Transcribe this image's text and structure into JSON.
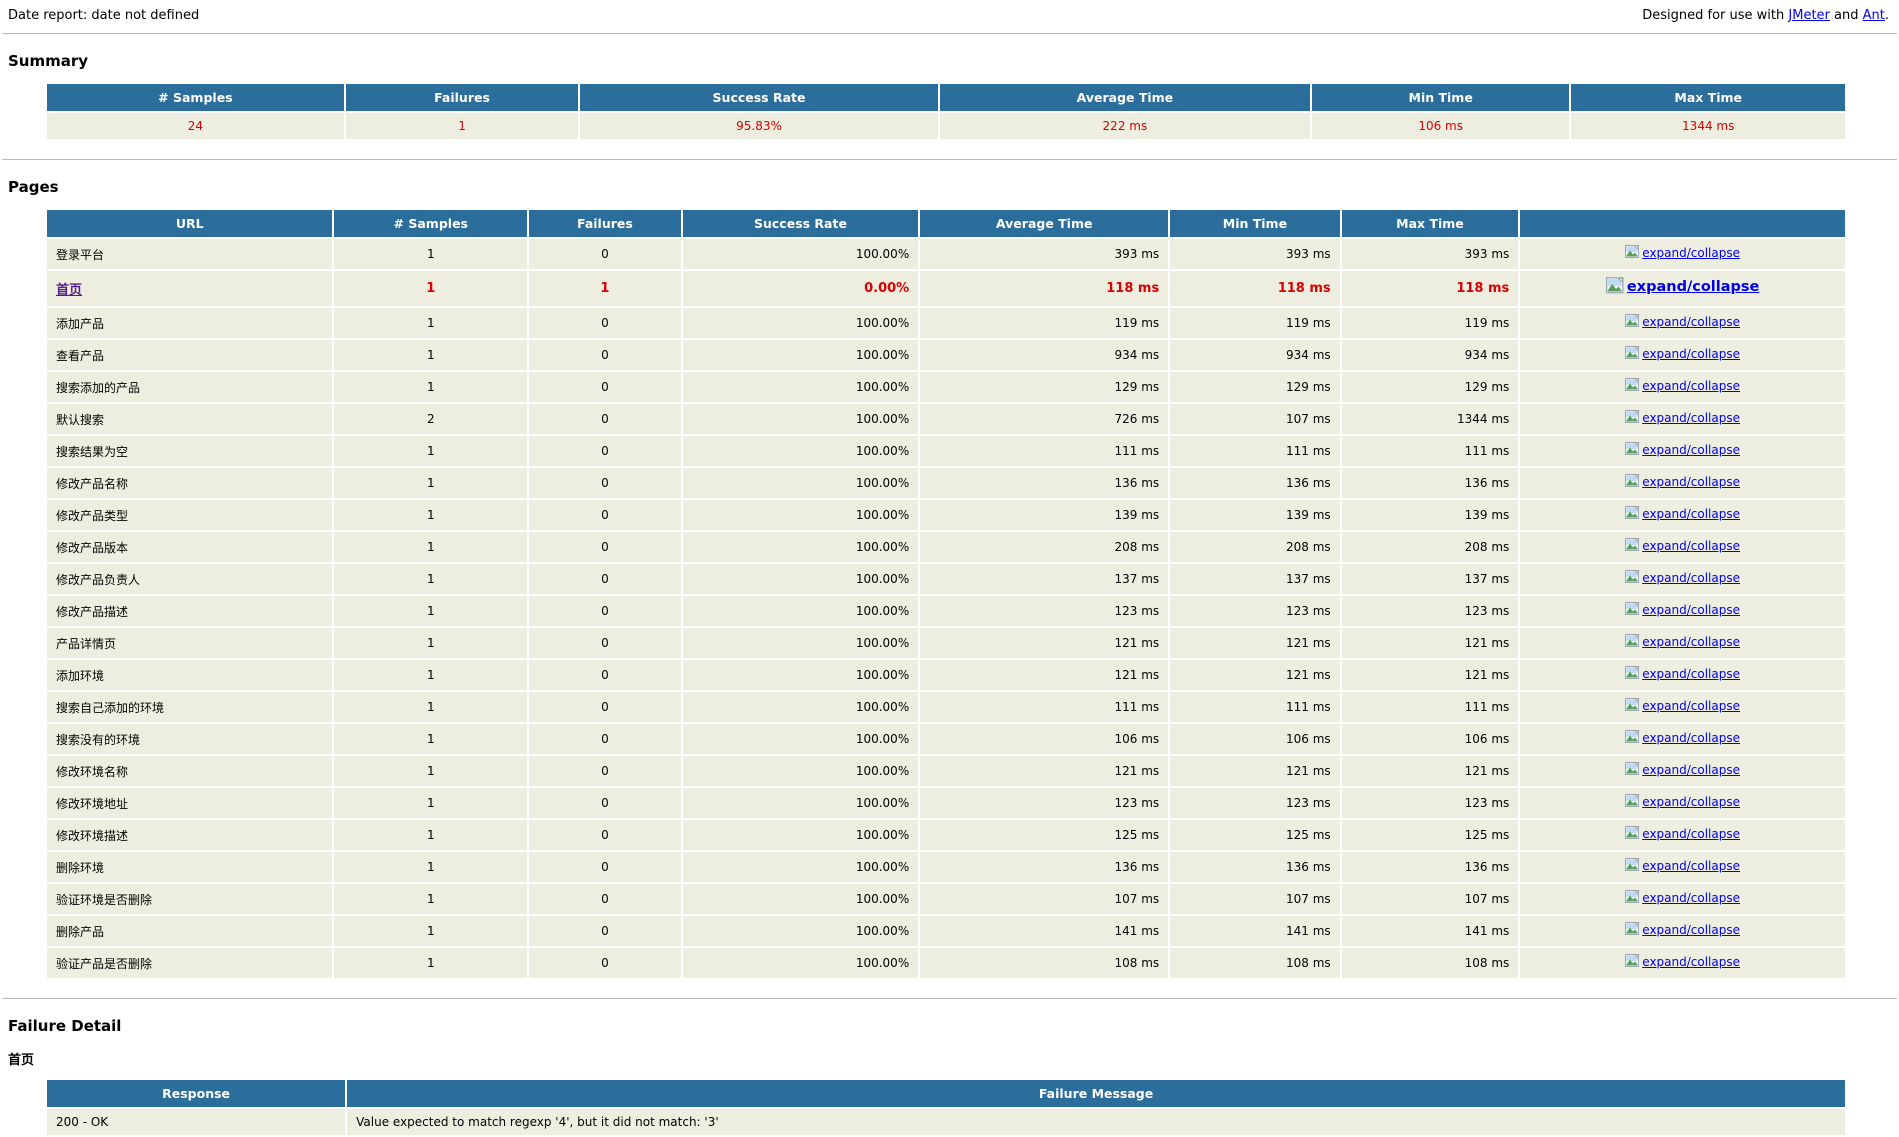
{
  "header": {
    "date_report": "Date report: date not defined",
    "designed_prefix": "Designed for use with ",
    "jmeter_link": "JMeter",
    "and_text": " and ",
    "ant_link": "Ant",
    "period": "."
  },
  "colors": {
    "header_bg": "#2c6e9b",
    "row_bg": "#eeeee0",
    "failure": "#dd0000",
    "link": "#0000ee",
    "visited": "#551a8b"
  },
  "summary": {
    "title": "Summary",
    "columns": [
      "# Samples",
      "Failures",
      "Success Rate",
      "Average Time",
      "Min Time",
      "Max Time"
    ],
    "values": [
      "24",
      "1",
      "95.83%",
      "222 ms",
      "106 ms",
      "1344 ms"
    ]
  },
  "pages": {
    "title": "Pages",
    "columns": [
      "URL",
      "# Samples",
      "Failures",
      "Success Rate",
      "Average Time",
      "Min Time",
      "Max Time",
      ""
    ],
    "expand_label": "expand/collapse",
    "rows": [
      {
        "url": "登录平台",
        "samples": "1",
        "failures": "0",
        "success_rate": "100.00%",
        "avg": "393 ms",
        "min": "393 ms",
        "max": "393 ms",
        "failed": false
      },
      {
        "url": "首页",
        "samples": "1",
        "failures": "1",
        "success_rate": "0.00%",
        "avg": "118 ms",
        "min": "118 ms",
        "max": "118 ms",
        "failed": true
      },
      {
        "url": "添加产品",
        "samples": "1",
        "failures": "0",
        "success_rate": "100.00%",
        "avg": "119 ms",
        "min": "119 ms",
        "max": "119 ms",
        "failed": false
      },
      {
        "url": "查看产品",
        "samples": "1",
        "failures": "0",
        "success_rate": "100.00%",
        "avg": "934 ms",
        "min": "934 ms",
        "max": "934 ms",
        "failed": false
      },
      {
        "url": "搜索添加的产品",
        "samples": "1",
        "failures": "0",
        "success_rate": "100.00%",
        "avg": "129 ms",
        "min": "129 ms",
        "max": "129 ms",
        "failed": false
      },
      {
        "url": "默认搜索",
        "samples": "2",
        "failures": "0",
        "success_rate": "100.00%",
        "avg": "726 ms",
        "min": "107 ms",
        "max": "1344 ms",
        "failed": false
      },
      {
        "url": "搜索结果为空",
        "samples": "1",
        "failures": "0",
        "success_rate": "100.00%",
        "avg": "111 ms",
        "min": "111 ms",
        "max": "111 ms",
        "failed": false
      },
      {
        "url": "修改产品名称",
        "samples": "1",
        "failures": "0",
        "success_rate": "100.00%",
        "avg": "136 ms",
        "min": "136 ms",
        "max": "136 ms",
        "failed": false
      },
      {
        "url": "修改产品类型",
        "samples": "1",
        "failures": "0",
        "success_rate": "100.00%",
        "avg": "139 ms",
        "min": "139 ms",
        "max": "139 ms",
        "failed": false
      },
      {
        "url": "修改产品版本",
        "samples": "1",
        "failures": "0",
        "success_rate": "100.00%",
        "avg": "208 ms",
        "min": "208 ms",
        "max": "208 ms",
        "failed": false
      },
      {
        "url": "修改产品负责人",
        "samples": "1",
        "failures": "0",
        "success_rate": "100.00%",
        "avg": "137 ms",
        "min": "137 ms",
        "max": "137 ms",
        "failed": false
      },
      {
        "url": "修改产品描述",
        "samples": "1",
        "failures": "0",
        "success_rate": "100.00%",
        "avg": "123 ms",
        "min": "123 ms",
        "max": "123 ms",
        "failed": false
      },
      {
        "url": "产品详情页",
        "samples": "1",
        "failures": "0",
        "success_rate": "100.00%",
        "avg": "121 ms",
        "min": "121 ms",
        "max": "121 ms",
        "failed": false
      },
      {
        "url": "添加环境",
        "samples": "1",
        "failures": "0",
        "success_rate": "100.00%",
        "avg": "121 ms",
        "min": "121 ms",
        "max": "121 ms",
        "failed": false
      },
      {
        "url": "搜索自己添加的环境",
        "samples": "1",
        "failures": "0",
        "success_rate": "100.00%",
        "avg": "111 ms",
        "min": "111 ms",
        "max": "111 ms",
        "failed": false
      },
      {
        "url": "搜索没有的环境",
        "samples": "1",
        "failures": "0",
        "success_rate": "100.00%",
        "avg": "106 ms",
        "min": "106 ms",
        "max": "106 ms",
        "failed": false
      },
      {
        "url": "修改环境名称",
        "samples": "1",
        "failures": "0",
        "success_rate": "100.00%",
        "avg": "121 ms",
        "min": "121 ms",
        "max": "121 ms",
        "failed": false
      },
      {
        "url": "修改环境地址",
        "samples": "1",
        "failures": "0",
        "success_rate": "100.00%",
        "avg": "123 ms",
        "min": "123 ms",
        "max": "123 ms",
        "failed": false
      },
      {
        "url": "修改环境描述",
        "samples": "1",
        "failures": "0",
        "success_rate": "100.00%",
        "avg": "125 ms",
        "min": "125 ms",
        "max": "125 ms",
        "failed": false
      },
      {
        "url": "删除环境",
        "samples": "1",
        "failures": "0",
        "success_rate": "100.00%",
        "avg": "136 ms",
        "min": "136 ms",
        "max": "136 ms",
        "failed": false
      },
      {
        "url": "验证环境是否删除",
        "samples": "1",
        "failures": "0",
        "success_rate": "100.00%",
        "avg": "107 ms",
        "min": "107 ms",
        "max": "107 ms",
        "failed": false
      },
      {
        "url": "删除产品",
        "samples": "1",
        "failures": "0",
        "success_rate": "100.00%",
        "avg": "141 ms",
        "min": "141 ms",
        "max": "141 ms",
        "failed": false
      },
      {
        "url": "验证产品是否删除",
        "samples": "1",
        "failures": "0",
        "success_rate": "100.00%",
        "avg": "108 ms",
        "min": "108 ms",
        "max": "108 ms",
        "failed": false
      }
    ]
  },
  "failure_detail": {
    "title": "Failure Detail",
    "page": "首页",
    "columns": [
      "Response",
      "Failure Message"
    ],
    "rows": [
      {
        "response": "200 - OK",
        "message": "Value expected to match regexp '4', but it did not match: '3'"
      }
    ]
  }
}
